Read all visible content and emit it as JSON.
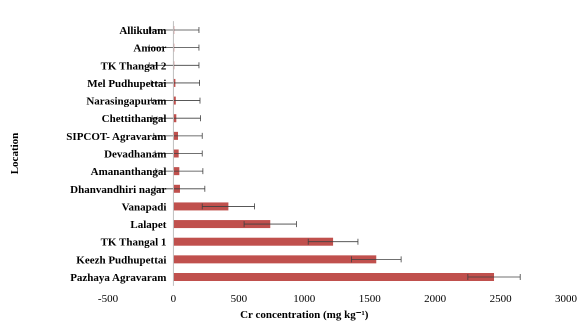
{
  "chart_data": {
    "type": "bar",
    "orientation": "horizontal",
    "categories": [
      "Allikulam",
      "Amoor",
      "TK Thangal 2",
      "Mel Pudhupettai",
      "Narasingapuram",
      "Chettithangal",
      "SIPCOT- Agravaram",
      "Devadhanam",
      "Amananthangal",
      "Dhanvandhiri nagar",
      "Vanapadi",
      "Lalapet",
      "TK Thangal 1",
      "Keezh Pudhupettai",
      "Pazhaya Agravaram"
    ],
    "values": [
      5,
      5,
      5,
      15,
      18,
      22,
      35,
      40,
      45,
      50,
      420,
      740,
      1220,
      1550,
      2450
    ],
    "errors": [
      190,
      190,
      190,
      185,
      185,
      185,
      185,
      180,
      180,
      190,
      200,
      200,
      190,
      190,
      200
    ],
    "title": "",
    "xlabel": "Cr concentration (mg kg⁻¹)",
    "ylabel": "Location",
    "xlim": [
      -500,
      3000
    ],
    "xticks": [
      -500,
      0,
      500,
      1000,
      1500,
      2000,
      2500,
      3000
    ],
    "xtick_labels": [
      "-500",
      "0",
      "500",
      "1000",
      "1500",
      "2000",
      "2500",
      "3000"
    ],
    "grid": false,
    "legend": "none",
    "bar_color": "#c0504d",
    "error_bar_color": "#404040"
  }
}
